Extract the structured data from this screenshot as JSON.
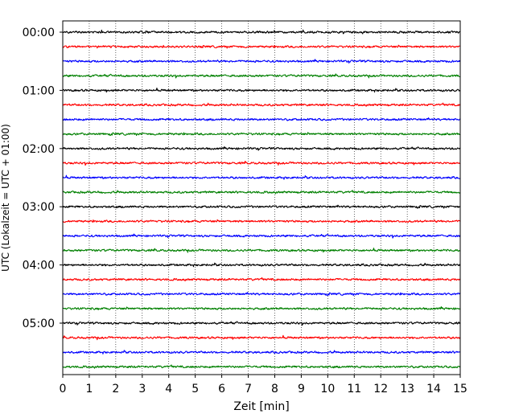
{
  "chart_data": {
    "type": "line",
    "title": "",
    "xlabel": "Zeit  [min]",
    "ylabel": "UTC (Lokalzeit = UTC + 01:00)",
    "xlim": [
      0,
      15
    ],
    "x_ticks": [
      0,
      1,
      2,
      3,
      4,
      5,
      6,
      7,
      8,
      9,
      10,
      11,
      12,
      13,
      14,
      15
    ],
    "x_tick_labels": [
      "0",
      "1",
      "2",
      "3",
      "4",
      "5",
      "6",
      "7",
      "8",
      "9",
      "10",
      "11",
      "12",
      "13",
      "14",
      "15"
    ],
    "y_tick_labels": [
      "00:00",
      "01:00",
      "02:00",
      "03:00",
      "04:00",
      "05:00"
    ],
    "lines_per_hour": 4,
    "line_minutes": 15,
    "line_colors": [
      "#000000",
      "#ff0000",
      "#0000ff",
      "#008000"
    ],
    "grid": "vertical dotted lines at each minute",
    "series": [
      {
        "start": "00:00",
        "color": "#000000"
      },
      {
        "start": "00:15",
        "color": "#ff0000"
      },
      {
        "start": "00:30",
        "color": "#0000ff"
      },
      {
        "start": "00:45",
        "color": "#008000"
      },
      {
        "start": "01:00",
        "color": "#000000"
      },
      {
        "start": "01:15",
        "color": "#ff0000"
      },
      {
        "start": "01:30",
        "color": "#0000ff"
      },
      {
        "start": "01:45",
        "color": "#008000"
      },
      {
        "start": "02:00",
        "color": "#000000"
      },
      {
        "start": "02:15",
        "color": "#ff0000"
      },
      {
        "start": "02:30",
        "color": "#0000ff"
      },
      {
        "start": "02:45",
        "color": "#008000"
      },
      {
        "start": "03:00",
        "color": "#000000"
      },
      {
        "start": "03:15",
        "color": "#ff0000"
      },
      {
        "start": "03:30",
        "color": "#0000ff"
      },
      {
        "start": "03:45",
        "color": "#008000"
      },
      {
        "start": "04:00",
        "color": "#000000"
      },
      {
        "start": "04:15",
        "color": "#ff0000"
      },
      {
        "start": "04:30",
        "color": "#0000ff"
      },
      {
        "start": "04:45",
        "color": "#008000"
      },
      {
        "start": "05:00",
        "color": "#000000"
      },
      {
        "start": "05:15",
        "color": "#ff0000"
      },
      {
        "start": "05:30",
        "color": "#0000ff"
      },
      {
        "start": "05:45",
        "color": "#008000"
      }
    ]
  }
}
